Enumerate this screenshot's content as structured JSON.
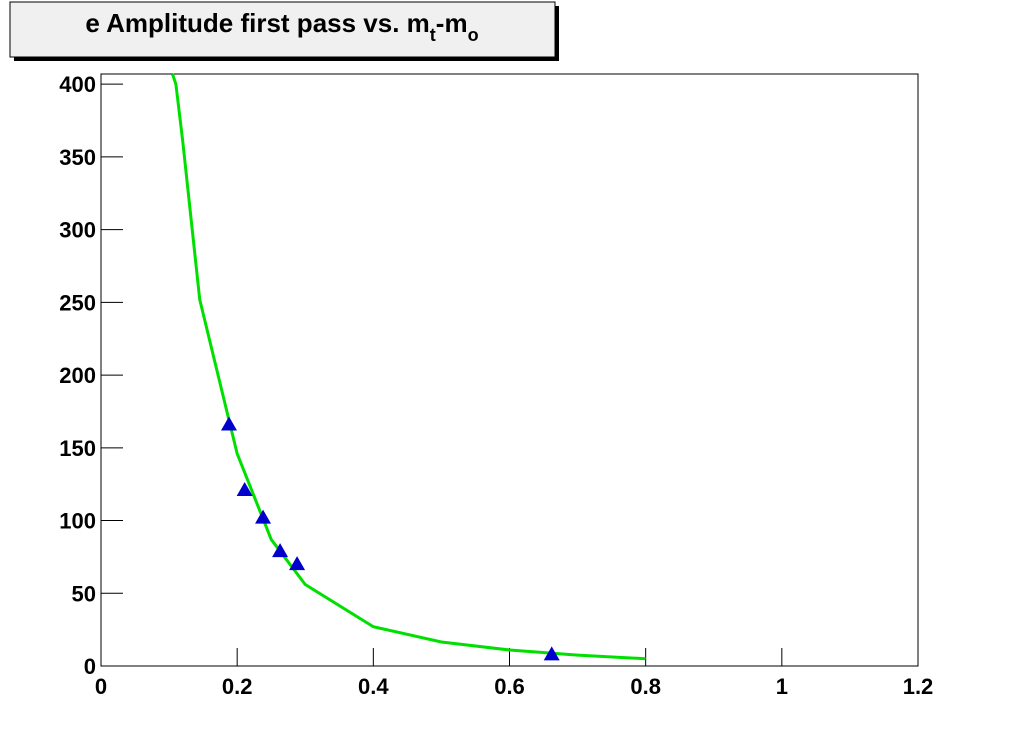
{
  "chart_data": {
    "type": "scatter",
    "title": [
      "e Amplitude first pass vs. m",
      "t",
      "-m",
      "o"
    ],
    "x": [
      0.188,
      0.211,
      0.238,
      0.263,
      0.288,
      0.662
    ],
    "values": [
      166,
      121,
      102,
      79,
      70,
      8
    ],
    "color": "#0000cc",
    "fit": {
      "color": "#00e000",
      "x": [
        0.105,
        0.11,
        0.12,
        0.145,
        0.188,
        0.2,
        0.25,
        0.3,
        0.4,
        0.5,
        0.6,
        0.7,
        0.8
      ],
      "values": [
        407,
        400,
        361,
        252,
        169,
        146,
        87,
        56,
        27,
        16.5,
        11,
        7.5,
        5
      ]
    },
    "xlim": [
      0,
      1.2
    ],
    "xticks": [
      0,
      0.2,
      0.4,
      0.6,
      0.8,
      1,
      1.2
    ],
    "ylim": [
      0,
      407
    ],
    "yticks": [
      0,
      50,
      100,
      150,
      200,
      250,
      300,
      350,
      400
    ]
  }
}
